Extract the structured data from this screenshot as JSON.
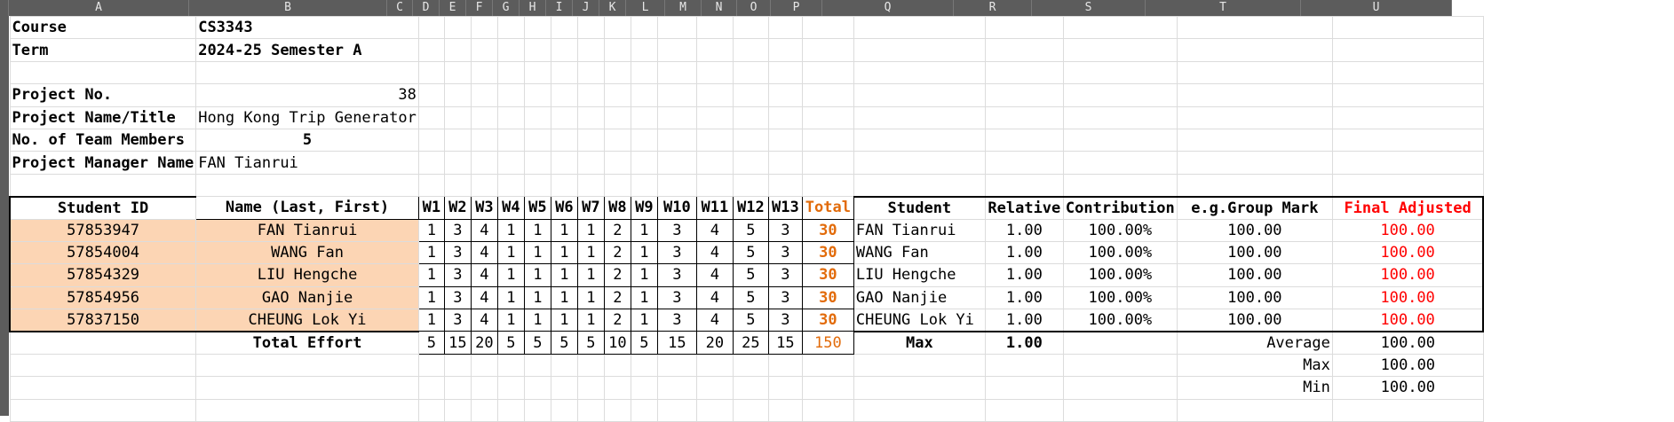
{
  "column_headers": [
    "A",
    "B",
    "C",
    "D",
    "E",
    "F",
    "G",
    "H",
    "I",
    "J",
    "K",
    "L",
    "M",
    "N",
    "O",
    "P",
    "Q",
    "R",
    "S",
    "T",
    "U"
  ],
  "info": {
    "course_label": "Course",
    "course_value": "CS3343",
    "term_label": "Term",
    "term_value": "2024-25 Semester A",
    "project_no_label": "Project No.",
    "project_no_value": "38",
    "project_name_label": "Project Name/Title",
    "project_name_value": "Hong Kong Trip Generator",
    "members_label": "No. of Team Members",
    "members_value": "5",
    "manager_label": "Project Manager Name",
    "manager_value": "FAN Tianrui"
  },
  "effort_table": {
    "headers": [
      "Student ID",
      "Name (Last, First)",
      "W1",
      "W2",
      "W3",
      "W4",
      "W5",
      "W6",
      "W7",
      "W8",
      "W9",
      "W10",
      "W11",
      "W12",
      "W13",
      "Total"
    ],
    "rows": [
      {
        "id": "57853947",
        "name": "FAN Tianrui",
        "weeks": [
          "1",
          "3",
          "4",
          "1",
          "1",
          "1",
          "1",
          "2",
          "1",
          "3",
          "4",
          "5",
          "3"
        ],
        "total": "30"
      },
      {
        "id": "57854004",
        "name": "WANG Fan",
        "weeks": [
          "1",
          "3",
          "4",
          "1",
          "1",
          "1",
          "1",
          "2",
          "1",
          "3",
          "4",
          "5",
          "3"
        ],
        "total": "30"
      },
      {
        "id": "57854329",
        "name": "LIU Hengche",
        "weeks": [
          "1",
          "3",
          "4",
          "1",
          "1",
          "1",
          "1",
          "2",
          "1",
          "3",
          "4",
          "5",
          "3"
        ],
        "total": "30"
      },
      {
        "id": "57854956",
        "name": "GAO Nanjie",
        "weeks": [
          "1",
          "3",
          "4",
          "1",
          "1",
          "1",
          "1",
          "2",
          "1",
          "3",
          "4",
          "5",
          "3"
        ],
        "total": "30"
      },
      {
        "id": "57837150",
        "name": "CHEUNG Lok Yi",
        "weeks": [
          "1",
          "3",
          "4",
          "1",
          "1",
          "1",
          "1",
          "2",
          "1",
          "3",
          "4",
          "5",
          "3"
        ],
        "total": "30"
      }
    ],
    "total_label": "Total Effort",
    "week_totals": [
      "5",
      "15",
      "20",
      "5",
      "5",
      "5",
      "5",
      "10",
      "5",
      "15",
      "20",
      "25",
      "15"
    ],
    "grand_total": "150"
  },
  "contribution_table": {
    "headers": [
      "Student",
      "Relative",
      "Contribution",
      "e.g.Group Mark",
      "Final Adjusted"
    ],
    "rows": [
      {
        "student": "FAN Tianrui",
        "relative": "1.00",
        "contribution": "100.00%",
        "group_mark": "100.00",
        "final": "100.00"
      },
      {
        "student": "WANG Fan",
        "relative": "1.00",
        "contribution": "100.00%",
        "group_mark": "100.00",
        "final": "100.00"
      },
      {
        "student": "LIU Hengche",
        "relative": "1.00",
        "contribution": "100.00%",
        "group_mark": "100.00",
        "final": "100.00"
      },
      {
        "student": "GAO Nanjie",
        "relative": "1.00",
        "contribution": "100.00%",
        "group_mark": "100.00",
        "final": "100.00"
      },
      {
        "student": "CHEUNG Lok Yi",
        "relative": "1.00",
        "contribution": "100.00%",
        "group_mark": "100.00",
        "final": "100.00"
      }
    ],
    "max_label": "Max",
    "max_value": "1.00",
    "average_label": "Average",
    "average_value": "100.00",
    "max2_label": "Max",
    "max2_value": "100.00",
    "min_label": "Min",
    "min_value": "100.00"
  },
  "colors": {
    "peach": "#fcd5b4",
    "orange": "#e26b0a",
    "red": "#ff0000",
    "header_bar": "#5c5c5c"
  }
}
